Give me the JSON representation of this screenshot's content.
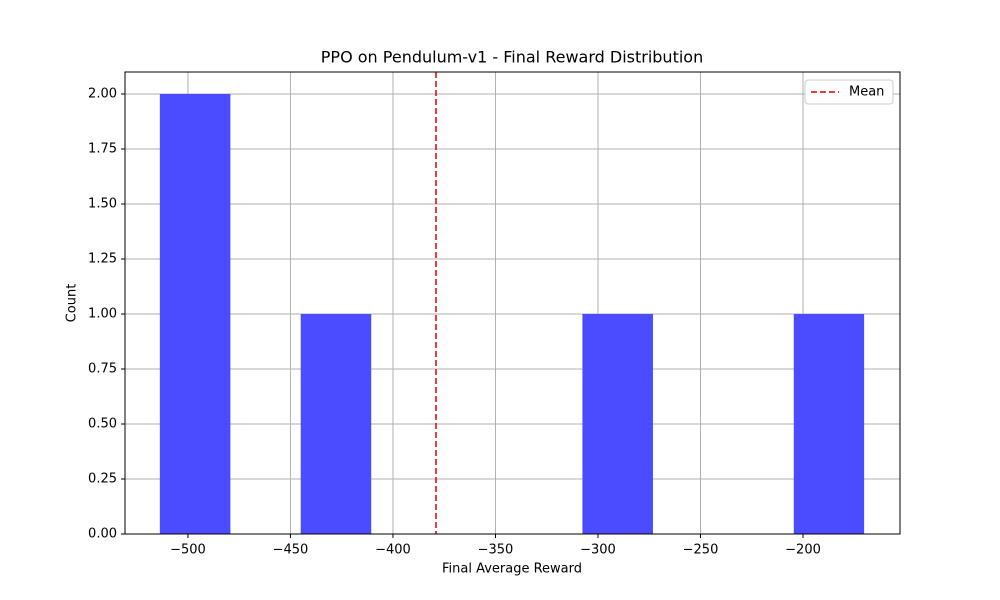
{
  "chart_data": {
    "type": "histogram",
    "title": "PPO on Pendulum-v1 - Final Reward Distribution",
    "x_label": "Final Average Reward",
    "y_label": "Count",
    "bins": [
      -513.7,
      -479.3,
      -445.0,
      -410.6,
      -376.3,
      -341.9,
      -307.6,
      -273.2,
      -238.9,
      -204.5,
      -170.2
    ],
    "counts": [
      2,
      0,
      1,
      0,
      0,
      0,
      1,
      0,
      0,
      1
    ],
    "color": "#4b4bff",
    "mean_line": {
      "name": "Mean",
      "value": -379,
      "color": "#e00000"
    },
    "xlim": [
      -530.7,
      -152.7
    ],
    "xticks": [
      {
        "value": -500,
        "label": "−500"
      },
      {
        "value": -450,
        "label": "−450"
      },
      {
        "value": -400,
        "label": "−400"
      },
      {
        "value": -350,
        "label": "−350"
      },
      {
        "value": -300,
        "label": "−300"
      },
      {
        "value": -250,
        "label": "−250"
      },
      {
        "value": -200,
        "label": "−200"
      }
    ],
    "ylim": [
      0,
      2.1
    ],
    "yticks": [
      {
        "value": 0,
        "label": "0.00"
      },
      {
        "value": 0.25,
        "label": "0.25"
      },
      {
        "value": 0.5,
        "label": "0.50"
      },
      {
        "value": 0.75,
        "label": "0.75"
      },
      {
        "value": 1,
        "label": "1.00"
      },
      {
        "value": 1.25,
        "label": "1.25"
      },
      {
        "value": 1.5,
        "label": "1.50"
      },
      {
        "value": 1.75,
        "label": "1.75"
      },
      {
        "value": 2,
        "label": "2.00"
      }
    ],
    "grid": true,
    "legend_position": "upper-right"
  }
}
